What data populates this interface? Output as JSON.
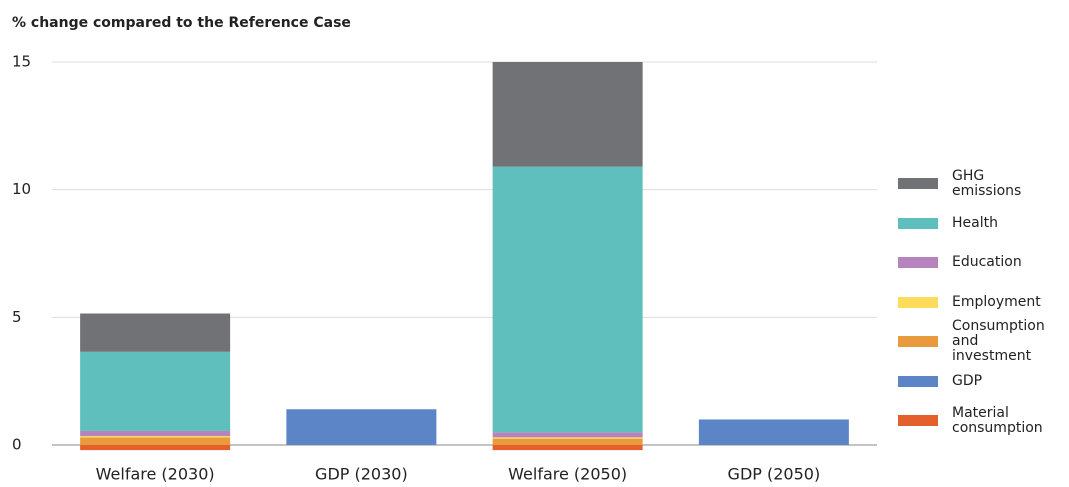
{
  "chart_data": {
    "type": "stacked_bar",
    "title": "% change compared to the Reference Case",
    "categories": [
      "Welfare (2030)",
      "GDP (2030)",
      "Welfare (2050)",
      "GDP (2050)"
    ],
    "series": [
      {
        "name": "GHG emissions",
        "color": "#717276",
        "values": [
          1.5,
          null,
          4.1,
          null
        ]
      },
      {
        "name": "Health",
        "color": "#5fbfbd",
        "values": [
          3.1,
          null,
          10.4,
          null
        ]
      },
      {
        "name": "Education",
        "color": "#b584bd",
        "values": [
          0.2,
          null,
          0.2,
          null
        ]
      },
      {
        "name": "Employment",
        "color": "#fddc5c",
        "values": [
          0.05,
          null,
          0.05,
          null
        ]
      },
      {
        "name": "Consumption and investment",
        "color": "#e99a3c",
        "values": [
          0.3,
          null,
          0.25,
          null
        ]
      },
      {
        "name": "GDP",
        "color": "#5b85c6",
        "values": [
          null,
          1.4,
          null,
          1.0
        ]
      },
      {
        "name": "Material consumption",
        "color": "#e45f2b",
        "values": [
          -0.2,
          null,
          -0.2,
          null
        ]
      }
    ],
    "ylim": [
      -0.3,
      15.1
    ],
    "yticks": [
      0,
      5,
      10,
      15
    ],
    "grid": true,
    "legend": "right"
  }
}
